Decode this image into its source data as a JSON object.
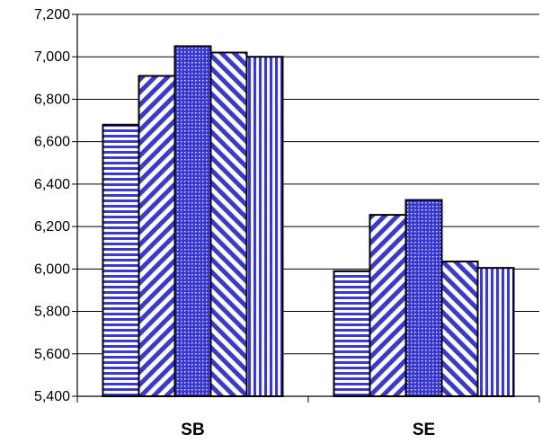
{
  "chart_data": {
    "type": "bar",
    "categories": [
      "SB",
      "SE"
    ],
    "series": [
      {
        "pattern": "horizontal-stripes",
        "values": [
          6680,
          5990
        ]
      },
      {
        "pattern": "diagonal-stripes-up",
        "values": [
          6910,
          6255
        ]
      },
      {
        "pattern": "dots",
        "values": [
          7050,
          6325
        ]
      },
      {
        "pattern": "diagonal-stripes-down",
        "values": [
          7020,
          6035
        ]
      },
      {
        "pattern": "vertical-stripes",
        "values": [
          7000,
          6005
        ]
      }
    ],
    "ylim": [
      5400,
      7200
    ],
    "yticks": [
      "5,400",
      "5,600",
      "5,800",
      "6,000",
      "6,200",
      "6,400",
      "6,600",
      "6,800",
      "7,000",
      "7,200"
    ],
    "grid": true,
    "legend": "none",
    "colors": {
      "bar_fill": "#3a3ad0",
      "bar_background": "#ffffff",
      "gridline": "#000000",
      "bar_outline": "#000000"
    }
  }
}
